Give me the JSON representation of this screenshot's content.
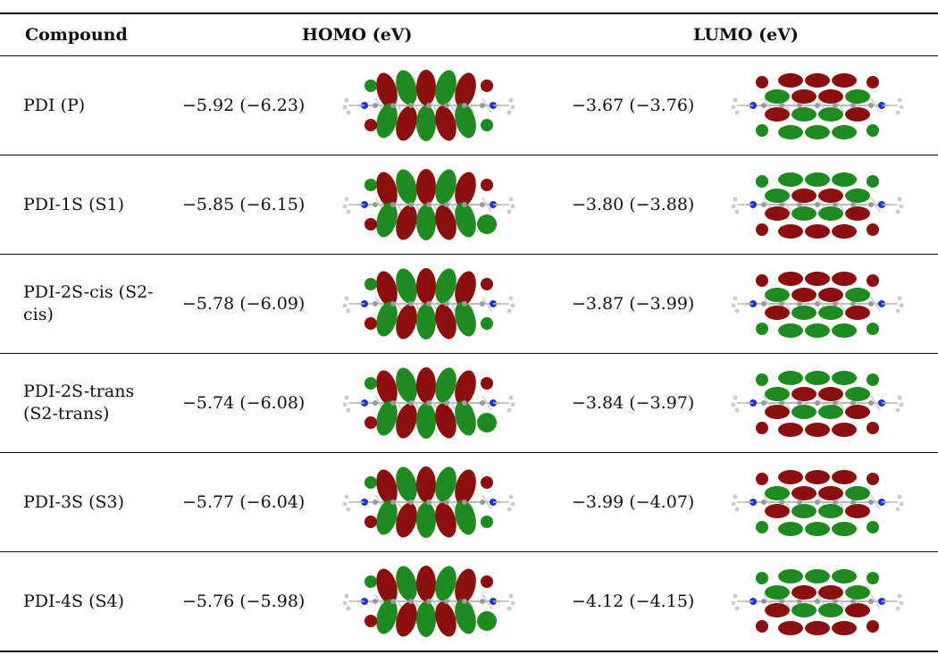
{
  "table": {
    "headers": {
      "compound": "Compound",
      "homo": "HOMO (eV)",
      "lumo": "LUMO (eV)"
    },
    "rows": [
      {
        "compound": "PDI (P)",
        "homo": "−5.92 (−6.23)",
        "lumo": "−3.67 (−3.76)"
      },
      {
        "compound": "PDI-1S (S1)",
        "homo": "−5.85 (−6.15)",
        "lumo": "−3.80 (−3.88)"
      },
      {
        "compound": "PDI-2S-cis (S2-cis)",
        "homo": "−5.78 (−6.09)",
        "lumo": "−3.87 (−3.99)"
      },
      {
        "compound": "PDI-2S-trans (S2-trans)",
        "homo": "−5.74 (−6.08)",
        "lumo": "−3.84 (−3.97)"
      },
      {
        "compound": "PDI-3S (S3)",
        "homo": "−5.77 (−6.04)",
        "lumo": "−3.99 (−4.07)"
      },
      {
        "compound": "PDI-4S (S4)",
        "homo": "−5.76 (−5.98)",
        "lumo": "−4.12 (−4.15)"
      }
    ]
  },
  "colors": {
    "lobe_red": "#8b0f0f",
    "lobe_green": "#1f8a1f",
    "atom_n": "#2233cc",
    "atom_c": "#9a9a9a"
  }
}
